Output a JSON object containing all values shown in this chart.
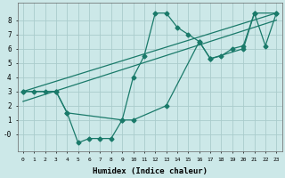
{
  "xlabel": "Humidex (Indice chaleur)",
  "background_color": "#cce8e8",
  "grid_color": "#aacccc",
  "line_color": "#1a7a6a",
  "xlim": [
    -0.5,
    23.5
  ],
  "ylim": [
    -1.2,
    9.2
  ],
  "xticks": [
    0,
    1,
    2,
    3,
    4,
    5,
    6,
    7,
    8,
    9,
    10,
    11,
    12,
    13,
    14,
    15,
    16,
    17,
    18,
    19,
    20,
    21,
    22,
    23
  ],
  "yticks": [
    0,
    1,
    2,
    3,
    4,
    5,
    6,
    7,
    8
  ],
  "ytick_labels": [
    "-0",
    "1",
    "2",
    "3",
    "4",
    "5",
    "6",
    "7",
    "8"
  ],
  "series1_x": [
    0,
    1,
    2,
    3,
    4,
    5,
    6,
    7,
    8,
    9,
    10,
    11,
    12,
    13,
    14,
    15,
    16,
    17,
    18,
    19,
    20,
    21,
    22,
    23
  ],
  "series1_y": [
    3.0,
    3.0,
    3.0,
    3.0,
    1.5,
    -0.6,
    -0.3,
    -0.3,
    -0.3,
    1.0,
    4.0,
    5.5,
    8.5,
    8.5,
    7.5,
    7.0,
    6.5,
    5.3,
    5.5,
    6.0,
    6.2,
    8.5,
    6.2,
    8.5
  ],
  "series2_x": [
    0,
    23
  ],
  "series2_y": [
    3.0,
    8.5
  ],
  "series3_x": [
    0,
    23
  ],
  "series3_y": [
    2.3,
    8.0
  ],
  "series4_x": [
    0,
    3,
    4,
    9,
    10,
    13,
    16,
    17,
    20,
    21,
    23
  ],
  "series4_y": [
    3.0,
    3.0,
    1.5,
    1.0,
    1.0,
    2.0,
    6.5,
    5.3,
    6.0,
    8.5,
    8.5
  ]
}
